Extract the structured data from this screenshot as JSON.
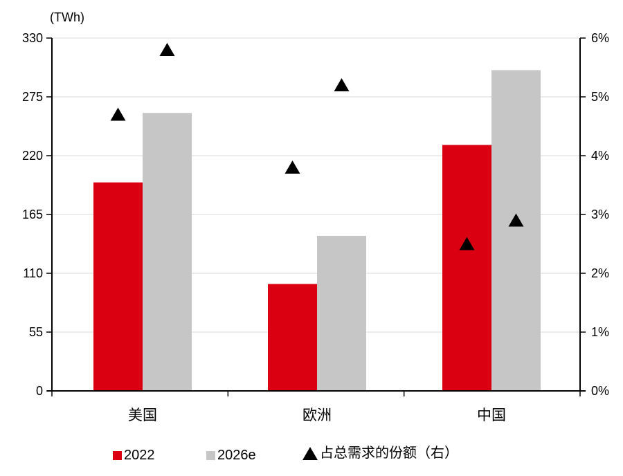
{
  "chart_data": {
    "type": "bar",
    "title": "",
    "left_axis": {
      "label": "(TWh)",
      "ticks": [
        0,
        55,
        110,
        165,
        220,
        275,
        330
      ],
      "min": 0,
      "max": 330
    },
    "right_axis": {
      "ticks": [
        0,
        1,
        2,
        3,
        4,
        5,
        6
      ],
      "tick_labels": [
        "0%",
        "1%",
        "2%",
        "3%",
        "4%",
        "5%",
        "6%"
      ],
      "min": 0,
      "max": 6,
      "suffix": "%"
    },
    "categories": [
      "美国",
      "欧洲",
      "中国"
    ],
    "series": [
      {
        "name": "2022",
        "type": "bar",
        "axis": "left",
        "values": [
          195,
          100,
          230
        ]
      },
      {
        "name": "2026e",
        "type": "bar",
        "axis": "left",
        "values": [
          260,
          145,
          300
        ]
      },
      {
        "name": "占总需求的份额（右）",
        "type": "scatter-triangle",
        "axis": "right",
        "values_over_2022": [
          4.7,
          3.8,
          2.5
        ],
        "values_over_2026e": [
          5.8,
          5.2,
          2.9
        ]
      }
    ],
    "legend": [
      {
        "marker": "red-square",
        "label": "2022"
      },
      {
        "marker": "gray-square",
        "label": "2026e"
      },
      {
        "marker": "black-triangle",
        "label": "占总需求的份额（右）"
      }
    ],
    "grid": "horizontal",
    "legend_position": "bottom",
    "colors": {
      "bar_2022": "#db0011",
      "bar_2026e": "#c6c6c6",
      "marker": "#000000",
      "gridline": "#d9d9d9",
      "axis": "#000000",
      "text": "#000000"
    }
  }
}
